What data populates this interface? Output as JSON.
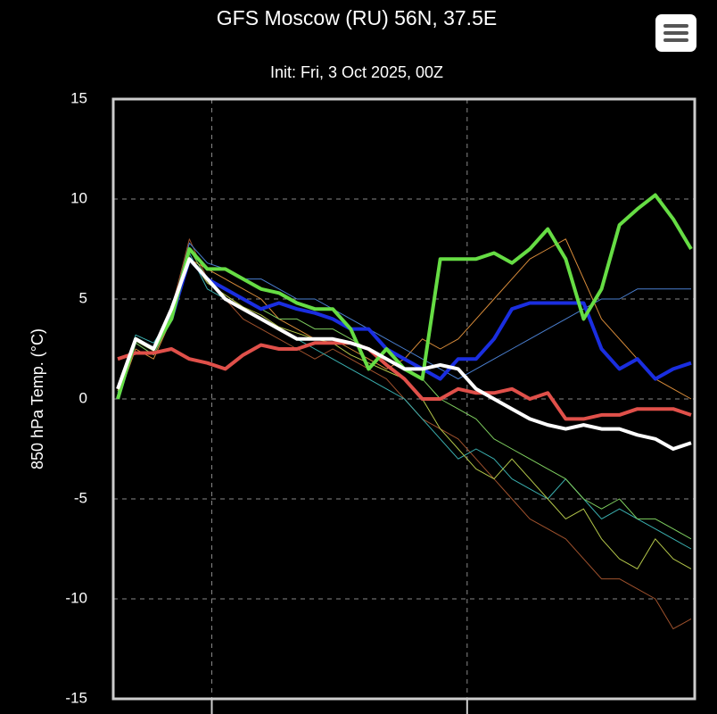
{
  "chart_data": {
    "type": "line",
    "title": "GFS Moscow (RU) 56N, 37.5E",
    "subtitle": "Init: Fri, 3 Oct 2025, 00Z",
    "y_label": "850 hPa Temp. (°C)",
    "x": [
      0,
      2,
      4,
      6,
      8,
      10,
      12,
      14,
      16,
      18,
      20,
      22,
      24,
      26,
      28,
      30,
      32,
      34,
      36,
      38,
      40,
      42,
      44,
      46,
      48,
      50,
      52,
      54,
      56,
      58,
      60,
      62,
      64
    ],
    "xlim": [
      -0.5,
      64.4
    ],
    "xticks": [
      10.5,
      39
    ],
    "ylim": [
      -15,
      15
    ],
    "yticks": [
      -15,
      -10,
      -5,
      0,
      5,
      10,
      15
    ],
    "grid": true,
    "series": [
      {
        "color": "#a0522d",
        "line_width": 1,
        "values": [
          0.5,
          3,
          2.5,
          4.5,
          8,
          6,
          5,
          4,
          3.5,
          3,
          2.5,
          2,
          2.5,
          2,
          1.5,
          1,
          0,
          -1,
          -1.5,
          -2,
          -3,
          -4,
          -5,
          -6,
          -6.5,
          -7,
          -8,
          -9,
          -9,
          -9.5,
          -10,
          -11.5,
          -11
        ]
      },
      {
        "color": "#d98c3a",
        "line_width": 1,
        "values": [
          0,
          2.5,
          2,
          4,
          7,
          6.5,
          6,
          5.5,
          5,
          4,
          3.5,
          3,
          3,
          2.5,
          2,
          1.5,
          2,
          3,
          2.5,
          3,
          4,
          5,
          6,
          7,
          7.5,
          8,
          6,
          4,
          3,
          2,
          1,
          0.5,
          0
        ]
      },
      {
        "color": "#3ab0b0",
        "line_width": 1,
        "values": [
          0.3,
          3.2,
          2.8,
          4.2,
          7.3,
          5.5,
          5,
          4.5,
          4,
          3.5,
          3,
          2.5,
          2,
          1.5,
          1,
          0.5,
          0,
          -1,
          -2,
          -3,
          -2.5,
          -3,
          -4,
          -4.5,
          -5,
          -4,
          -5,
          -6,
          -5.5,
          -6,
          -6.5,
          -7,
          -7.5
        ]
      },
      {
        "color": "#7fcf5f",
        "line_width": 1,
        "values": [
          0,
          2.8,
          2.2,
          4,
          7.5,
          6,
          5.5,
          5,
          4.5,
          4,
          4,
          3.5,
          3.5,
          3,
          2.5,
          2,
          1.5,
          1,
          0,
          -0.5,
          -1,
          -2,
          -2.5,
          -3,
          -3.5,
          -4,
          -5,
          -5.5,
          -5,
          -6,
          -6,
          -6.5,
          -7
        ]
      },
      {
        "color": "#4a7fd0",
        "line_width": 1,
        "values": [
          0.2,
          3,
          2.6,
          4.3,
          7.8,
          6.8,
          6.5,
          6,
          6,
          5.5,
          5,
          5,
          4.5,
          4,
          3.5,
          3,
          2.5,
          2,
          1.5,
          1,
          1.5,
          2,
          2.5,
          3,
          3.5,
          4,
          4.5,
          5,
          5,
          5.5,
          5.5,
          5.5,
          5.5
        ]
      },
      {
        "color": "#b5c84a",
        "line_width": 1,
        "values": [
          0.4,
          2.9,
          2.4,
          4.1,
          7.1,
          5.8,
          5.2,
          4.6,
          4.2,
          3.6,
          3.3,
          3,
          2.8,
          2.2,
          1.8,
          1.4,
          1,
          0,
          -1.5,
          -2.5,
          -3.5,
          -4,
          -3,
          -4,
          -5,
          -6,
          -5.5,
          -7,
          -8,
          -8.5,
          -7,
          -8,
          -8.5
        ]
      },
      {
        "color": "#e0504a",
        "line_width": 4,
        "values": [
          2,
          2.3,
          2.3,
          2.5,
          2,
          1.8,
          1.5,
          2.2,
          2.7,
          2.5,
          2.5,
          2.8,
          2.8,
          2.8,
          2.5,
          1.7,
          1,
          0,
          0,
          0.5,
          0.3,
          0.3,
          0.5,
          0,
          0.3,
          -1,
          -1,
          -0.8,
          -0.8,
          -0.5,
          -0.5,
          -0.5,
          -0.8
        ]
      },
      {
        "color": "#1a2ee0",
        "line_width": 4,
        "values": [
          0,
          3,
          2.5,
          4,
          7,
          6,
          5.5,
          5,
          4.5,
          4.8,
          4.5,
          4.3,
          4,
          3.5,
          3.5,
          2.5,
          2,
          1.5,
          1,
          2,
          2,
          3,
          4.5,
          4.8,
          4.8,
          4.8,
          4.8,
          2.5,
          1.5,
          2,
          1,
          1.5,
          1.8
        ]
      },
      {
        "color": "#66dd44",
        "line_width": 4,
        "values": [
          0,
          3,
          2.5,
          4,
          7.5,
          6.5,
          6.5,
          6,
          5.5,
          5.3,
          4.8,
          4.5,
          4.5,
          3.5,
          1.5,
          2.5,
          1.5,
          1,
          7,
          7,
          7,
          7.3,
          6.8,
          7.5,
          8.5,
          7,
          4,
          5.5,
          8.7,
          9.5,
          10.2,
          9,
          7.5
        ]
      },
      {
        "color": "#ffffff",
        "line_width": 4,
        "values": [
          0.5,
          3,
          2.5,
          4.5,
          7,
          6,
          5,
          4.5,
          4,
          3.5,
          3,
          3,
          3,
          2.8,
          2.5,
          2,
          1.5,
          1.5,
          1.7,
          1.5,
          0.5,
          0,
          -0.5,
          -1,
          -1.3,
          -1.5,
          -1.3,
          -1.5,
          -1.5,
          -1.8,
          -2,
          -2.5,
          -2.2
        ]
      }
    ]
  }
}
